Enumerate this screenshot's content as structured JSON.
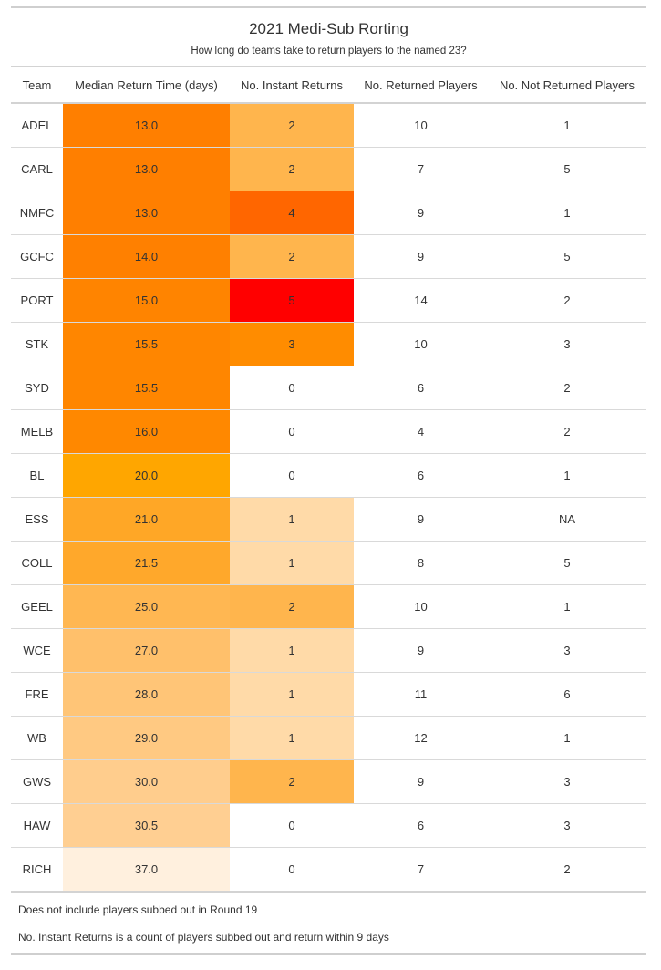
{
  "chart_data": {
    "type": "table",
    "title": "2021 Medi-Sub Rorting",
    "subtitle": "How long do teams take to return players to the named 23?",
    "columns": [
      "Team",
      "Median Return Time (days)",
      "No. Instant Returns",
      "No. Returned Players",
      "No. Not Returned Players"
    ],
    "rows": [
      {
        "team": "ADEL",
        "median": "13.0",
        "instant": "2",
        "returned": "10",
        "not_returned": "1",
        "median_color": "#ff7f00",
        "instant_color": "#ffb54d"
      },
      {
        "team": "CARL",
        "median": "13.0",
        "instant": "2",
        "returned": "7",
        "not_returned": "5",
        "median_color": "#ff7f00",
        "instant_color": "#ffb54d"
      },
      {
        "team": "NMFC",
        "median": "13.0",
        "instant": "4",
        "returned": "9",
        "not_returned": "1",
        "median_color": "#ff7f00",
        "instant_color": "#ff6600"
      },
      {
        "team": "GCFC",
        "median": "14.0",
        "instant": "2",
        "returned": "9",
        "not_returned": "5",
        "median_color": "#ff8000",
        "instant_color": "#ffb54d"
      },
      {
        "team": "PORT",
        "median": "15.0",
        "instant": "5",
        "returned": "14",
        "not_returned": "2",
        "median_color": "#ff8400",
        "instant_color": "#ff0000"
      },
      {
        "team": "STK",
        "median": "15.5",
        "instant": "3",
        "returned": "10",
        "not_returned": "3",
        "median_color": "#ff8600",
        "instant_color": "#ff8c00"
      },
      {
        "team": "SYD",
        "median": "15.5",
        "instant": "0",
        "returned": "6",
        "not_returned": "2",
        "median_color": "#ff8600",
        "instant_color": "#ffffff"
      },
      {
        "team": "MELB",
        "median": "16.0",
        "instant": "0",
        "returned": "4",
        "not_returned": "2",
        "median_color": "#ff8800",
        "instant_color": "#ffffff"
      },
      {
        "team": "BL",
        "median": "20.0",
        "instant": "0",
        "returned": "6",
        "not_returned": "1",
        "median_color": "#ffa600",
        "instant_color": "#ffffff"
      },
      {
        "team": "ESS",
        "median": "21.0",
        "instant": "1",
        "returned": "9",
        "not_returned": "NA",
        "median_color": "#ffa726",
        "instant_color": "#ffdaa8"
      },
      {
        "team": "COLL",
        "median": "21.5",
        "instant": "1",
        "returned": "8",
        "not_returned": "5",
        "median_color": "#ffa82b",
        "instant_color": "#ffdaa8"
      },
      {
        "team": "GEEL",
        "median": "25.0",
        "instant": "2",
        "returned": "10",
        "not_returned": "1",
        "median_color": "#ffb752",
        "instant_color": "#ffb54d"
      },
      {
        "team": "WCE",
        "median": "27.0",
        "instant": "1",
        "returned": "9",
        "not_returned": "3",
        "median_color": "#ffc06b",
        "instant_color": "#ffdaa8"
      },
      {
        "team": "FRE",
        "median": "28.0",
        "instant": "1",
        "returned": "11",
        "not_returned": "6",
        "median_color": "#ffc577",
        "instant_color": "#ffdaa8"
      },
      {
        "team": "WB",
        "median": "29.0",
        "instant": "1",
        "returned": "12",
        "not_returned": "1",
        "median_color": "#ffc982",
        "instant_color": "#ffdaa8"
      },
      {
        "team": "GWS",
        "median": "30.0",
        "instant": "2",
        "returned": "9",
        "not_returned": "3",
        "median_color": "#ffcd8d",
        "instant_color": "#ffb54d"
      },
      {
        "team": "HAW",
        "median": "30.5",
        "instant": "0",
        "returned": "6",
        "not_returned": "3",
        "median_color": "#ffcf92",
        "instant_color": "#ffffff"
      },
      {
        "team": "RICH",
        "median": "37.0",
        "instant": "0",
        "returned": "7",
        "not_returned": "2",
        "median_color": "#fff0de",
        "instant_color": "#ffffff"
      }
    ],
    "footnotes": [
      "Does not include players subbed out in Round 19",
      "No. Instant Returns is a count of players subbed out and return within 9 days"
    ]
  }
}
